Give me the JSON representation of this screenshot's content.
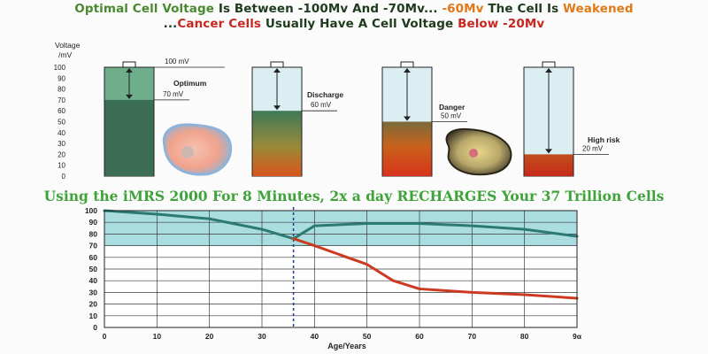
{
  "header": {
    "line1": [
      {
        "text": "Optimal Cell Voltage",
        "color": "#4a8a2e"
      },
      {
        "text": " Is Between -100Mv And -70Mv... ",
        "color": "#4a8a2e"
      },
      {
        "text": "-60Mv",
        "color": "#e07a17"
      },
      {
        "text": " The Cell Is ",
        "color": "#4a8a2e"
      },
      {
        "text": "Weakened",
        "color": "#e07a17"
      }
    ],
    "line2": [
      {
        "text": "...",
        "color": "#1e3b1e"
      },
      {
        "text": "Cancer Cells",
        "color": "#c8281f"
      },
      {
        "text": " Usually Have A Cell Voltage ",
        "color": "#1e3b1e"
      },
      {
        "text": "Below -20Mv",
        "color": "#c8281f"
      }
    ]
  },
  "banner": "Using the iMRS 2000 For 8 Minutes, 2x a day RECHARGES Your 37 Trillion Cells",
  "batteries": {
    "axis_title_line1": "Voltage",
    "axis_title_line2": "/mV",
    "ticks": [
      "100",
      "90",
      "80",
      "70",
      "60",
      "50",
      "40",
      "30",
      "20",
      "10",
      "0"
    ],
    "items": [
      {
        "name": "optimum",
        "state_label": "Optimum",
        "level_label": "70 mV",
        "top_label": "100 mV",
        "level": 70
      },
      {
        "name": "discharge",
        "state_label": "Discharge",
        "level_label": "60 mV",
        "level": 60
      },
      {
        "name": "danger",
        "state_label": "Danger",
        "level_label": "50 mV",
        "level": 50
      },
      {
        "name": "high-risk",
        "state_label": "High risk",
        "level_label": "20 mV",
        "level": 20
      }
    ]
  },
  "chart_data": {
    "type": "line",
    "title": "",
    "xlabel": "Age/Years",
    "ylabel": "",
    "xlim": [
      0,
      90
    ],
    "ylim": [
      0,
      100
    ],
    "x_ticks": [
      "0",
      "10",
      "20",
      "30",
      "40",
      "50",
      "60",
      "70",
      "80",
      "9α"
    ],
    "y_ticks": [
      "100",
      "90",
      "80",
      "70",
      "60",
      "50",
      "40",
      "30",
      "20",
      "10",
      "0"
    ],
    "optimal_band": [
      70,
      100
    ],
    "marker_x": 36,
    "series": [
      {
        "name": "natural-decline",
        "color": "#2d7a75",
        "x": [
          0,
          10,
          20,
          30,
          36
        ],
        "y": [
          100,
          97,
          93,
          84,
          76
        ]
      },
      {
        "name": "with-imrs",
        "color": "#2d7a75",
        "x": [
          36,
          40,
          50,
          60,
          70,
          80,
          90
        ],
        "y": [
          76,
          87,
          89,
          89,
          87,
          84,
          78
        ]
      },
      {
        "name": "without-imrs",
        "color": "#cc3a21",
        "x": [
          36,
          40,
          50,
          55,
          60,
          70,
          80,
          90
        ],
        "y": [
          76,
          70,
          54,
          40,
          33,
          30,
          28,
          25
        ]
      }
    ]
  }
}
